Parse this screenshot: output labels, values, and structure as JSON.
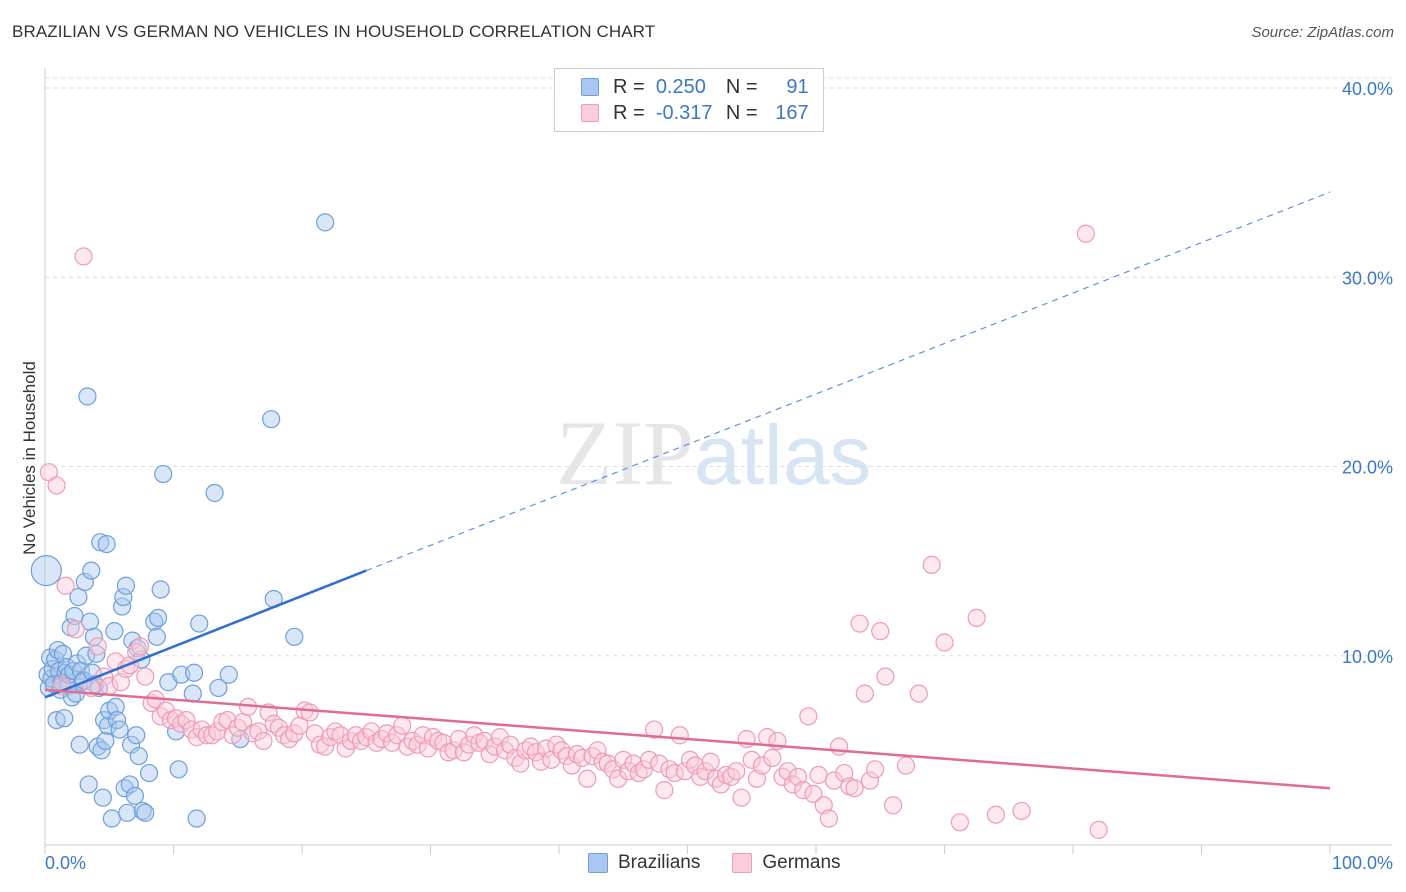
{
  "header": {
    "title": "BRAZILIAN VS GERMAN NO VEHICLES IN HOUSEHOLD CORRELATION CHART",
    "source": "Source: ZipAtlas.com"
  },
  "watermark": {
    "zip": "ZIP",
    "atlas": "atlas"
  },
  "legend": {
    "rows": [
      {
        "r_label": "R =",
        "r_value": "0.250",
        "n_label": "N =",
        "n_value": "91",
        "color": "#a8c8ef"
      },
      {
        "r_label": "R =",
        "r_value": "-0.317",
        "n_label": "N =",
        "n_value": "167",
        "color": "#f4b6c8"
      }
    ]
  },
  "bottom_legend": {
    "items": [
      {
        "label": "Brazilians",
        "color": "#a8c8ef"
      },
      {
        "label": "Germans",
        "color": "#f4b6c8"
      }
    ]
  },
  "chart_data": {
    "type": "scatter",
    "ylabel": "No Vehicles in Household",
    "xlim": [
      0,
      100
    ],
    "ylim": [
      0,
      40
    ],
    "x_tick_labels": {
      "min": "0.0%",
      "max": "100.0%"
    },
    "y_ticks": [
      {
        "value": 10,
        "label": "10.0%"
      },
      {
        "value": 20,
        "label": "20.0%"
      },
      {
        "value": 30,
        "label": "30.0%"
      },
      {
        "value": 40,
        "label": "40.0%"
      }
    ],
    "grid": true,
    "series": [
      {
        "name": "Brazilians",
        "color": "#7aaae6",
        "trend": {
          "x0": 0,
          "y0": 7.8,
          "x1": 25,
          "y1": 14.5,
          "dash_to_x": 100,
          "dash_to_y": 34.5,
          "color": "#2e6fcf"
        },
        "points": [
          [
            0.1,
            14.5
          ],
          [
            0.2,
            9.0
          ],
          [
            0.3,
            8.3
          ],
          [
            0.4,
            9.9
          ],
          [
            0.5,
            8.8
          ],
          [
            0.6,
            9.3
          ],
          [
            0.7,
            8.5
          ],
          [
            0.8,
            9.8
          ],
          [
            0.9,
            6.6
          ],
          [
            1.0,
            10.3
          ],
          [
            1.1,
            9.2
          ],
          [
            1.2,
            8.2
          ],
          [
            1.3,
            8.6
          ],
          [
            1.4,
            10.1
          ],
          [
            1.5,
            6.7
          ],
          [
            1.6,
            9.1
          ],
          [
            1.7,
            9.4
          ],
          [
            1.8,
            8.4
          ],
          [
            1.9,
            9.0
          ],
          [
            2.0,
            11.5
          ],
          [
            2.1,
            7.8
          ],
          [
            2.2,
            9.2
          ],
          [
            2.3,
            12.1
          ],
          [
            2.4,
            8.0
          ],
          [
            2.5,
            9.6
          ],
          [
            2.6,
            13.1
          ],
          [
            2.7,
            5.3
          ],
          [
            2.8,
            9.2
          ],
          [
            2.9,
            8.6
          ],
          [
            3.0,
            8.7
          ],
          [
            3.1,
            13.9
          ],
          [
            3.2,
            10.0
          ],
          [
            3.3,
            23.7
          ],
          [
            3.4,
            3.2
          ],
          [
            3.5,
            11.8
          ],
          [
            3.6,
            14.5
          ],
          [
            3.7,
            9.1
          ],
          [
            3.8,
            11.0
          ],
          [
            3.9,
            8.5
          ],
          [
            4.0,
            10.1
          ],
          [
            4.1,
            5.2
          ],
          [
            4.2,
            8.3
          ],
          [
            4.3,
            16.0
          ],
          [
            4.4,
            5.0
          ],
          [
            4.5,
            2.5
          ],
          [
            4.6,
            6.6
          ],
          [
            4.7,
            5.5
          ],
          [
            4.8,
            15.9
          ],
          [
            4.9,
            6.3
          ],
          [
            5.0,
            7.1
          ],
          [
            5.2,
            1.4
          ],
          [
            5.4,
            11.3
          ],
          [
            5.5,
            7.3
          ],
          [
            5.6,
            6.6
          ],
          [
            5.8,
            6.1
          ],
          [
            6.0,
            12.6
          ],
          [
            6.1,
            13.1
          ],
          [
            6.2,
            3.0
          ],
          [
            6.3,
            13.7
          ],
          [
            6.4,
            1.7
          ],
          [
            6.6,
            3.2
          ],
          [
            6.7,
            5.3
          ],
          [
            6.8,
            10.8
          ],
          [
            7.0,
            2.6
          ],
          [
            7.1,
            5.8
          ],
          [
            7.2,
            10.4
          ],
          [
            7.3,
            4.7
          ],
          [
            7.5,
            9.8
          ],
          [
            7.6,
            1.8
          ],
          [
            7.8,
            1.7
          ],
          [
            8.1,
            3.8
          ],
          [
            8.5,
            11.8
          ],
          [
            8.7,
            11.0
          ],
          [
            8.8,
            12.0
          ],
          [
            9.0,
            13.5
          ],
          [
            9.2,
            19.6
          ],
          [
            9.6,
            8.6
          ],
          [
            10.2,
            6.0
          ],
          [
            10.4,
            4.0
          ],
          [
            10.6,
            9.0
          ],
          [
            11.5,
            8.0
          ],
          [
            11.6,
            9.1
          ],
          [
            11.8,
            1.4
          ],
          [
            12.0,
            11.7
          ],
          [
            13.2,
            18.6
          ],
          [
            13.5,
            8.3
          ],
          [
            14.3,
            9.0
          ],
          [
            15.2,
            5.6
          ],
          [
            17.6,
            22.5
          ],
          [
            17.8,
            13.0
          ],
          [
            19.4,
            11.0
          ],
          [
            21.8,
            32.9
          ]
        ]
      },
      {
        "name": "Germans",
        "color": "#f08fae",
        "trend": {
          "x0": 0,
          "y0": 8.2,
          "x1": 100,
          "y1": 3.0,
          "color": "#e06b95"
        },
        "points": [
          [
            0.3,
            19.7
          ],
          [
            0.9,
            19.0
          ],
          [
            1.3,
            8.4
          ],
          [
            1.6,
            13.7
          ],
          [
            2.4,
            11.4
          ],
          [
            3.0,
            31.1
          ],
          [
            3.6,
            8.3
          ],
          [
            4.1,
            10.5
          ],
          [
            4.6,
            8.9
          ],
          [
            5.0,
            8.4
          ],
          [
            5.5,
            9.7
          ],
          [
            5.9,
            8.6
          ],
          [
            6.3,
            9.3
          ],
          [
            6.6,
            9.5
          ],
          [
            7.1,
            10.2
          ],
          [
            7.4,
            10.5
          ],
          [
            7.8,
            8.9
          ],
          [
            8.3,
            7.5
          ],
          [
            8.6,
            7.7
          ],
          [
            9.0,
            6.8
          ],
          [
            9.4,
            7.1
          ],
          [
            9.8,
            6.6
          ],
          [
            10.2,
            6.7
          ],
          [
            10.6,
            6.4
          ],
          [
            11.0,
            6.6
          ],
          [
            11.4,
            6.1
          ],
          [
            11.8,
            5.7
          ],
          [
            12.2,
            6.1
          ],
          [
            12.6,
            5.8
          ],
          [
            13.0,
            5.8
          ],
          [
            13.4,
            6.0
          ],
          [
            13.8,
            6.5
          ],
          [
            14.2,
            6.6
          ],
          [
            14.6,
            5.8
          ],
          [
            15.0,
            6.2
          ],
          [
            15.4,
            6.5
          ],
          [
            15.8,
            7.3
          ],
          [
            16.2,
            5.9
          ],
          [
            16.6,
            6.0
          ],
          [
            17.0,
            5.5
          ],
          [
            17.4,
            7.0
          ],
          [
            17.8,
            6.4
          ],
          [
            18.2,
            6.2
          ],
          [
            18.6,
            5.8
          ],
          [
            19.0,
            5.6
          ],
          [
            19.4,
            5.9
          ],
          [
            19.8,
            6.3
          ],
          [
            20.2,
            7.1
          ],
          [
            20.6,
            7.0
          ],
          [
            21.0,
            5.9
          ],
          [
            21.4,
            5.3
          ],
          [
            21.8,
            5.2
          ],
          [
            22.2,
            5.7
          ],
          [
            22.6,
            6.0
          ],
          [
            23.0,
            5.8
          ],
          [
            23.4,
            5.1
          ],
          [
            23.8,
            5.5
          ],
          [
            24.2,
            5.8
          ],
          [
            24.6,
            5.5
          ],
          [
            25.0,
            5.7
          ],
          [
            25.4,
            6.0
          ],
          [
            25.8,
            5.4
          ],
          [
            26.2,
            5.6
          ],
          [
            26.6,
            5.9
          ],
          [
            27.0,
            5.4
          ],
          [
            27.4,
            5.8
          ],
          [
            27.8,
            6.3
          ],
          [
            28.2,
            5.2
          ],
          [
            28.6,
            5.5
          ],
          [
            29.0,
            5.3
          ],
          [
            29.4,
            5.8
          ],
          [
            29.8,
            5.1
          ],
          [
            30.2,
            5.7
          ],
          [
            30.6,
            5.5
          ],
          [
            31.0,
            5.4
          ],
          [
            31.4,
            4.9
          ],
          [
            31.8,
            5.0
          ],
          [
            32.2,
            5.6
          ],
          [
            32.6,
            4.9
          ],
          [
            33.0,
            5.3
          ],
          [
            33.4,
            5.8
          ],
          [
            33.8,
            5.4
          ],
          [
            34.2,
            5.5
          ],
          [
            34.6,
            4.8
          ],
          [
            35.0,
            5.2
          ],
          [
            35.4,
            5.7
          ],
          [
            35.8,
            5.0
          ],
          [
            36.2,
            5.3
          ],
          [
            36.6,
            4.6
          ],
          [
            37.0,
            4.3
          ],
          [
            37.4,
            5.0
          ],
          [
            37.8,
            5.2
          ],
          [
            38.2,
            4.9
          ],
          [
            38.6,
            4.4
          ],
          [
            39.0,
            5.1
          ],
          [
            39.4,
            4.5
          ],
          [
            39.8,
            5.3
          ],
          [
            40.2,
            5.0
          ],
          [
            40.6,
            4.7
          ],
          [
            41.0,
            4.2
          ],
          [
            41.4,
            4.8
          ],
          [
            41.8,
            4.6
          ],
          [
            42.2,
            3.5
          ],
          [
            42.6,
            4.7
          ],
          [
            43.0,
            5.0
          ],
          [
            43.4,
            4.4
          ],
          [
            43.8,
            4.3
          ],
          [
            44.2,
            4.0
          ],
          [
            44.6,
            3.5
          ],
          [
            45.0,
            4.5
          ],
          [
            45.4,
            3.9
          ],
          [
            45.8,
            4.3
          ],
          [
            46.2,
            3.8
          ],
          [
            46.6,
            4.0
          ],
          [
            47.0,
            4.5
          ],
          [
            47.4,
            6.1
          ],
          [
            47.8,
            4.3
          ],
          [
            48.2,
            2.9
          ],
          [
            48.6,
            4.0
          ],
          [
            49.0,
            3.8
          ],
          [
            49.4,
            5.8
          ],
          [
            49.8,
            3.9
          ],
          [
            50.2,
            4.5
          ],
          [
            50.6,
            4.2
          ],
          [
            51.0,
            3.6
          ],
          [
            51.4,
            3.9
          ],
          [
            51.8,
            4.4
          ],
          [
            52.2,
            3.5
          ],
          [
            52.6,
            3.2
          ],
          [
            53.0,
            3.7
          ],
          [
            53.4,
            3.6
          ],
          [
            53.8,
            3.9
          ],
          [
            54.2,
            2.5
          ],
          [
            54.6,
            5.6
          ],
          [
            55.0,
            4.5
          ],
          [
            55.4,
            3.5
          ],
          [
            55.8,
            4.2
          ],
          [
            56.2,
            5.7
          ],
          [
            56.6,
            4.6
          ],
          [
            57.0,
            5.5
          ],
          [
            57.4,
            3.6
          ],
          [
            57.8,
            3.9
          ],
          [
            58.2,
            3.2
          ],
          [
            58.6,
            3.6
          ],
          [
            59.0,
            2.9
          ],
          [
            59.4,
            6.8
          ],
          [
            59.8,
            2.7
          ],
          [
            60.2,
            3.7
          ],
          [
            60.6,
            2.1
          ],
          [
            61.0,
            1.4
          ],
          [
            61.4,
            3.4
          ],
          [
            61.8,
            5.2
          ],
          [
            62.2,
            3.8
          ],
          [
            62.6,
            3.1
          ],
          [
            63.0,
            3.0
          ],
          [
            63.4,
            11.7
          ],
          [
            63.8,
            8.0
          ],
          [
            64.2,
            3.4
          ],
          [
            64.6,
            4.0
          ],
          [
            65.0,
            11.3
          ],
          [
            65.4,
            8.9
          ],
          [
            66.0,
            2.1
          ],
          [
            67.0,
            4.2
          ],
          [
            68.0,
            8.0
          ],
          [
            69.0,
            14.8
          ],
          [
            70.0,
            10.7
          ],
          [
            71.2,
            1.2
          ],
          [
            72.5,
            12.0
          ],
          [
            74.0,
            1.6
          ],
          [
            76.0,
            1.8
          ],
          [
            81.0,
            32.3
          ],
          [
            82.0,
            0.8
          ]
        ]
      }
    ]
  }
}
